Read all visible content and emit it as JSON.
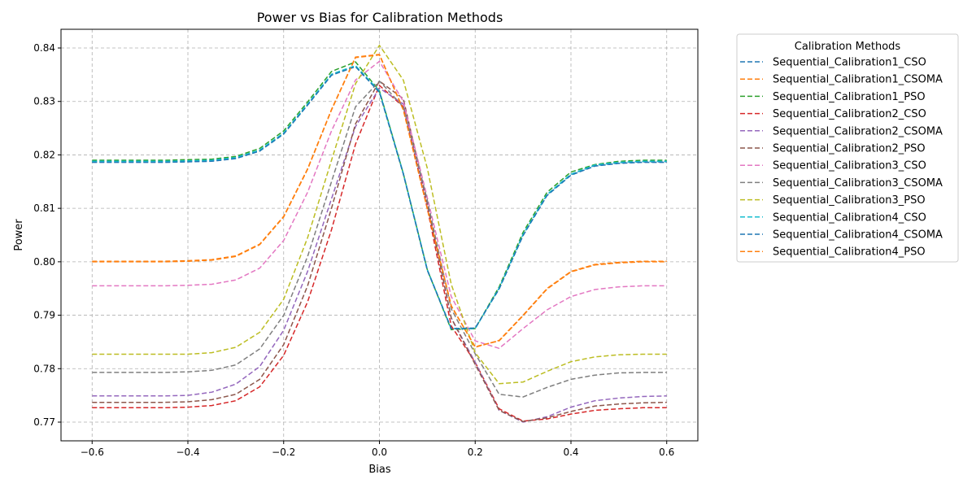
{
  "chart_data": {
    "type": "line",
    "title": "Power vs Bias for Calibration Methods",
    "xlabel": "Bias",
    "ylabel": "Power",
    "xlim": [
      -0.665,
      0.665
    ],
    "ylim": [
      0.7665,
      0.8435
    ],
    "xticks": [
      -0.6,
      -0.4,
      -0.2,
      0.0,
      0.2,
      0.4,
      0.6
    ],
    "xtick_labels": [
      "−0.6",
      "−0.4",
      "−0.2",
      "0.0",
      "0.2",
      "0.4",
      "0.6"
    ],
    "yticks": [
      0.77,
      0.78,
      0.79,
      0.8,
      0.81,
      0.82,
      0.83,
      0.84
    ],
    "ytick_labels": [
      "0.77",
      "0.78",
      "0.79",
      "0.80",
      "0.81",
      "0.82",
      "0.83",
      "0.84"
    ],
    "grid": true,
    "legend_title": "Calibration Methods",
    "legend_position": "outside-right",
    "x": [
      -0.6,
      -0.55,
      -0.5,
      -0.45,
      -0.4,
      -0.35,
      -0.3,
      -0.25,
      -0.2,
      -0.15,
      -0.1,
      -0.05,
      0.0,
      0.05,
      0.1,
      0.15,
      0.2,
      0.25,
      0.3,
      0.35,
      0.4,
      0.45,
      0.5,
      0.55,
      0.6
    ],
    "series": [
      {
        "name": "Sequential_Calibration1_CSO",
        "color": "#1f77b4",
        "dashed": true,
        "values": [
          0.8187,
          0.8187,
          0.8187,
          0.8187,
          0.8188,
          0.8189,
          0.8194,
          0.8208,
          0.824,
          0.8294,
          0.835,
          0.8366,
          0.8318,
          0.8165,
          0.7985,
          0.7875,
          0.7875,
          0.795,
          0.805,
          0.8125,
          0.8163,
          0.818,
          0.8185,
          0.8187,
          0.8187
        ]
      },
      {
        "name": "Sequential_Calibration1_CSOMA",
        "color": "#ff7f0e",
        "dashed": true,
        "values": [
          0.8001,
          0.8001,
          0.8001,
          0.8001,
          0.8002,
          0.8004,
          0.8011,
          0.8033,
          0.8085,
          0.8174,
          0.8285,
          0.8383,
          0.8388,
          0.8285,
          0.81,
          0.7918,
          0.784,
          0.7853,
          0.79,
          0.795,
          0.7982,
          0.7995,
          0.7999,
          0.8001,
          0.8001
        ]
      },
      {
        "name": "Sequential_Calibration1_PSO",
        "color": "#2ca02c",
        "dashed": true,
        "values": [
          0.819,
          0.819,
          0.819,
          0.819,
          0.8191,
          0.8192,
          0.8197,
          0.8212,
          0.8245,
          0.8299,
          0.8356,
          0.8374,
          0.832,
          0.8165,
          0.7985,
          0.7873,
          0.7875,
          0.7953,
          0.8055,
          0.813,
          0.8168,
          0.8182,
          0.8188,
          0.819,
          0.819
        ]
      },
      {
        "name": "Sequential_Calibration2_CSO",
        "color": "#d62728",
        "dashed": true,
        "values": [
          0.7727,
          0.7727,
          0.7727,
          0.7727,
          0.7728,
          0.7731,
          0.774,
          0.7766,
          0.7825,
          0.7925,
          0.806,
          0.822,
          0.833,
          0.829,
          0.81,
          0.788,
          0.7812,
          0.7725,
          0.7702,
          0.7706,
          0.7715,
          0.7722,
          0.7725,
          0.7727,
          0.7727
        ]
      },
      {
        "name": "Sequential_Calibration2_CSOMA",
        "color": "#9467bd",
        "dashed": true,
        "values": [
          0.7749,
          0.7749,
          0.7749,
          0.7749,
          0.775,
          0.7756,
          0.7771,
          0.7804,
          0.7872,
          0.7982,
          0.8118,
          0.8253,
          0.8325,
          0.8295,
          0.8108,
          0.7895,
          0.7812,
          0.7722,
          0.77,
          0.771,
          0.7728,
          0.774,
          0.7745,
          0.7748,
          0.7749
        ]
      },
      {
        "name": "Sequential_Calibration2_PSO",
        "color": "#8c564b",
        "dashed": true,
        "values": [
          0.7737,
          0.7737,
          0.7737,
          0.7737,
          0.7738,
          0.7742,
          0.7752,
          0.778,
          0.7845,
          0.7955,
          0.81,
          0.8258,
          0.8338,
          0.8305,
          0.811,
          0.7895,
          0.7808,
          0.7722,
          0.7701,
          0.7708,
          0.772,
          0.773,
          0.7734,
          0.7736,
          0.7737
        ]
      },
      {
        "name": "Sequential_Calibration3_CSO",
        "color": "#e377c2",
        "dashed": true,
        "values": [
          0.7955,
          0.7955,
          0.7955,
          0.7955,
          0.7956,
          0.7958,
          0.7966,
          0.7988,
          0.804,
          0.813,
          0.8245,
          0.834,
          0.8375,
          0.83,
          0.812,
          0.7935,
          0.7852,
          0.7838,
          0.7875,
          0.791,
          0.7935,
          0.7948,
          0.7953,
          0.7955,
          0.7955
        ]
      },
      {
        "name": "Sequential_Calibration3_CSOMA",
        "color": "#7f7f7f",
        "dashed": true,
        "values": [
          0.7793,
          0.7793,
          0.7793,
          0.7793,
          0.7794,
          0.7797,
          0.7807,
          0.7837,
          0.79,
          0.801,
          0.815,
          0.829,
          0.8338,
          0.829,
          0.8115,
          0.7912,
          0.7828,
          0.7752,
          0.7747,
          0.7765,
          0.778,
          0.7788,
          0.7792,
          0.7793,
          0.7793
        ]
      },
      {
        "name": "Sequential_Calibration3_PSO",
        "color": "#bcbd22",
        "dashed": true,
        "values": [
          0.7827,
          0.7827,
          0.7827,
          0.7827,
          0.7827,
          0.783,
          0.784,
          0.7868,
          0.793,
          0.8045,
          0.819,
          0.8333,
          0.8405,
          0.834,
          0.8175,
          0.7958,
          0.783,
          0.7772,
          0.7775,
          0.7795,
          0.7813,
          0.7822,
          0.7826,
          0.7827,
          0.7827
        ]
      },
      {
        "name": "Sequential_Calibration4_CSO",
        "color": "#17becf",
        "dashed": true,
        "values": [
          0.8188,
          0.8188,
          0.8188,
          0.8188,
          0.8189,
          0.819,
          0.8195,
          0.8209,
          0.8241,
          0.8295,
          0.8351,
          0.8367,
          0.8319,
          0.8165,
          0.7985,
          0.7875,
          0.7875,
          0.7951,
          0.8051,
          0.8126,
          0.8164,
          0.8181,
          0.8186,
          0.8188,
          0.8188
        ]
      },
      {
        "name": "Sequential_Calibration4_CSOMA",
        "color": "#1f77b4",
        "dashed": true,
        "values": [
          0.8186,
          0.8186,
          0.8186,
          0.8186,
          0.8187,
          0.8188,
          0.8193,
          0.8207,
          0.8239,
          0.8293,
          0.8349,
          0.8365,
          0.8317,
          0.8164,
          0.7984,
          0.7875,
          0.7876,
          0.7949,
          0.8049,
          0.8124,
          0.8162,
          0.8179,
          0.8184,
          0.8186,
          0.8186
        ]
      },
      {
        "name": "Sequential_Calibration4_PSO",
        "color": "#ff7f0e",
        "dashed": true,
        "values": [
          0.8,
          0.8,
          0.8,
          0.8,
          0.8001,
          0.8003,
          0.801,
          0.8032,
          0.8084,
          0.8173,
          0.8284,
          0.8382,
          0.8387,
          0.8284,
          0.8099,
          0.7917,
          0.7841,
          0.7852,
          0.7899,
          0.7949,
          0.7981,
          0.7994,
          0.7998,
          0.8,
          0.8
        ]
      }
    ]
  }
}
